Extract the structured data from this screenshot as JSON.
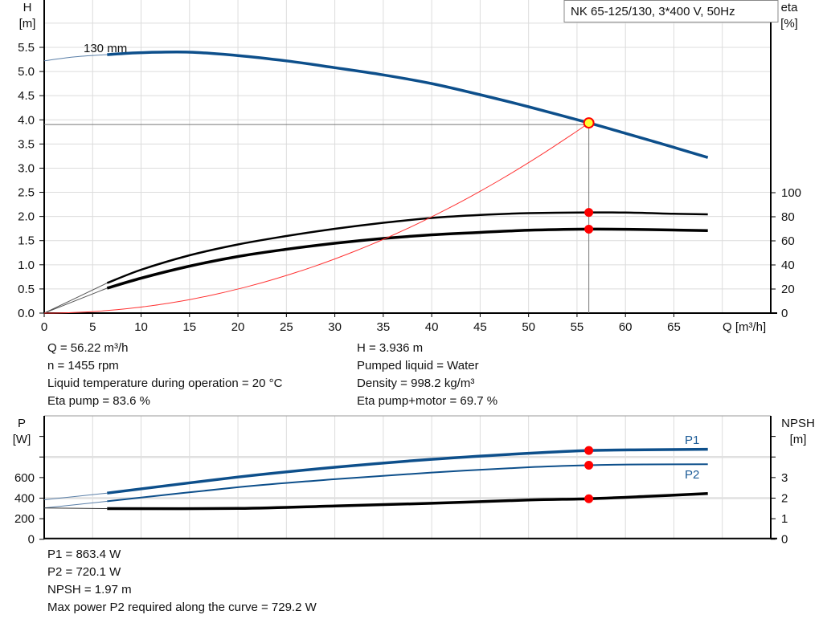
{
  "chart_data": [
    {
      "type": "line",
      "title": "NK 65-125/130, 3*400 V, 50Hz",
      "xlabel": "Q [m³/h]",
      "ylabel_left": [
        "H",
        "[m]"
      ],
      "ylabel_right": [
        "eta",
        "[%]"
      ],
      "xlim": [
        0,
        75
      ],
      "ylim_left": [
        0,
        6.48
      ],
      "ylim_right": [
        0,
        260
      ],
      "x_ticks": [
        0,
        5,
        10,
        15,
        20,
        25,
        30,
        35,
        40,
        45,
        50,
        55,
        60,
        65
      ],
      "y_ticks_left": [
        "0.0",
        "0.5",
        "1.0",
        "1.5",
        "2.0",
        "2.5",
        "3.0",
        "3.5",
        "4.0",
        "4.5",
        "5.0",
        "5.5"
      ],
      "y_ticks_right": [
        0,
        20,
        40,
        60,
        80,
        100
      ],
      "grid": true,
      "curve_label": "130 mm",
      "series": [
        {
          "id": "head",
          "axis": "left",
          "color": "#0d4f8b",
          "x": [
            6.5,
            10,
            15,
            20,
            25,
            30,
            35,
            40,
            45,
            50,
            56.22,
            60,
            65,
            68.5
          ],
          "y": [
            5.35,
            5.39,
            5.4,
            5.33,
            5.22,
            5.08,
            4.93,
            4.75,
            4.52,
            4.27,
            3.936,
            3.72,
            3.43,
            3.22
          ],
          "extension": {
            "x": [
              0,
              3,
              6.5
            ],
            "y": [
              5.22,
              5.3,
              5.35
            ]
          }
        },
        {
          "id": "eta-pump",
          "axis": "right",
          "color": "#000000",
          "x": [
            0,
            6.5,
            10,
            15,
            20,
            25,
            30,
            35,
            40,
            45,
            50,
            56.22,
            60,
            65,
            68.5
          ],
          "y": [
            0,
            25,
            36,
            48,
            57,
            64,
            70,
            75,
            79,
            81.5,
            83,
            83.6,
            83.5,
            82.5,
            82
          ]
        },
        {
          "id": "eta-pump-motor",
          "axis": "right",
          "color": "#000000",
          "x": [
            0,
            6.5,
            10,
            15,
            20,
            25,
            30,
            35,
            40,
            45,
            50,
            56.22,
            60,
            65,
            68.5
          ],
          "y": [
            0,
            20.7,
            29,
            39,
            47,
            53,
            58,
            62,
            65,
            67,
            68.8,
            69.7,
            69.6,
            69,
            68.5
          ]
        },
        {
          "id": "system-curve",
          "axis": "left",
          "color": "#ff3333",
          "type": "quadratic",
          "x_end": 56.22,
          "y_end": 3.936
        }
      ],
      "operating_point": {
        "q": 56.22,
        "h": 3.936,
        "eta_pump": 83.6,
        "eta_pump_motor": 69.7
      }
    },
    {
      "type": "line",
      "ylabel_left": [
        "P",
        "[W]"
      ],
      "ylabel_right": [
        "NPSH",
        "[m]"
      ],
      "xlim": [
        0,
        75
      ],
      "ylim_left": [
        0,
        1200
      ],
      "ylim_right": [
        0,
        6
      ],
      "y_ticks_left": [
        0,
        200,
        400,
        600,
        800,
        1000
      ],
      "y_ticks_left_labels": [
        "0",
        "200",
        "400",
        "600",
        "",
        ""
      ],
      "y_ticks_right": [
        0,
        1,
        2,
        3,
        4,
        5
      ],
      "y_ticks_right_labels": [
        "0",
        "1",
        "2",
        "3",
        "",
        ""
      ],
      "grid": true,
      "series": [
        {
          "id": "p1",
          "name": "P1",
          "axis": "left",
          "color": "#0d4f8b",
          "x": [
            6.5,
            20,
            30,
            40,
            50,
            56.22,
            62,
            68.5
          ],
          "y": [
            449,
            605,
            700,
            778,
            836,
            863.4,
            870,
            875
          ],
          "extension": {
            "x": [
              0,
              6.5
            ],
            "y": [
              384,
              449
            ]
          }
        },
        {
          "id": "p2",
          "name": "P2",
          "axis": "left",
          "color": "#0d4f8b",
          "x": [
            6.5,
            20,
            30,
            40,
            50,
            56.22,
            62,
            68.5
          ],
          "y": [
            369,
            506,
            584,
            649,
            700,
            720.1,
            728,
            729.2
          ],
          "extension": {
            "x": [
              0,
              6.5
            ],
            "y": [
              304,
              369
            ]
          }
        },
        {
          "id": "npsh",
          "axis": "right",
          "color": "#000000",
          "x": [
            6.5,
            20,
            30,
            40,
            50,
            56.22,
            62,
            68.5
          ],
          "y": [
            1.49,
            1.5,
            1.62,
            1.75,
            1.91,
            1.97,
            2.08,
            2.22
          ],
          "extension": {
            "x": [
              0,
              6.5
            ],
            "y": [
              1.52,
              1.49
            ]
          }
        }
      ],
      "operating_point": {
        "q": 56.22,
        "p1": 863.4,
        "p2": 720.1,
        "npsh": 1.97
      }
    }
  ],
  "info_upper": {
    "left": [
      "Q = 56.22 m³/h",
      "n = 1455 rpm",
      "Liquid temperature during operation = 20 °C",
      "Eta pump = 83.6 %"
    ],
    "right": [
      "H = 3.936 m",
      "Pumped liquid = Water",
      "Density = 998.2 kg/m³",
      "Eta pump+motor = 69.7 %"
    ]
  },
  "info_lower": [
    "P1 = 863.4 W",
    "P2 = 720.1 W",
    "NPSH = 1.97 m",
    "Max power P2 required along the curve = 729.2 W"
  ]
}
